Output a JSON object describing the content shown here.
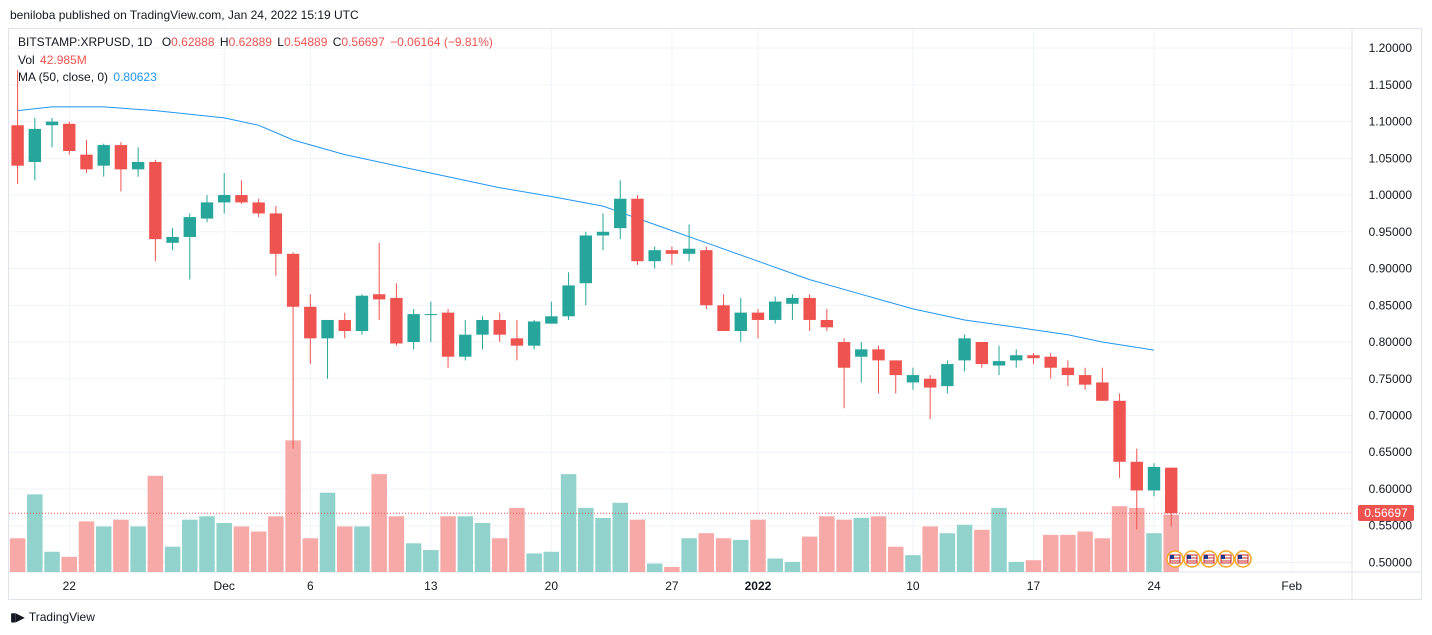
{
  "header": {
    "publish_text": "beniloba published on TradingView.com, Jan 24, 2022 15:19 UTC"
  },
  "legend": {
    "symbol": "BITSTAMP:XRPUSD, 1D",
    "o_label": "O",
    "o_value": "0.62888",
    "h_label": "H",
    "h_value": "0.62889",
    "l_label": "L",
    "l_value": "0.54889",
    "c_label": "C",
    "c_value": "0.56697",
    "change": "−0.06164 (−9.81%)",
    "vol_label": "Vol",
    "vol_value": "42.985M",
    "ma_label": "MA (50, close, 0)",
    "ma_value": "0.80623"
  },
  "last_price_label": "0.56697",
  "footer": {
    "brand": "TradingView"
  },
  "colors": {
    "up": "#26a69a",
    "down": "#ef5350",
    "up_vol": "#92d2cc",
    "down_vol": "#f7a9a7",
    "ma": "#2196f3",
    "grid": "#f0f3fa"
  },
  "chart_data": {
    "type": "candlestick",
    "symbol": "BITSTAMP:XRPUSD",
    "interval": "1D",
    "y_ticks": [
      "1.20000",
      "1.15000",
      "1.10000",
      "1.05000",
      "1.00000",
      "0.95000",
      "0.90000",
      "0.85000",
      "0.80000",
      "0.75000",
      "0.70000",
      "0.65000",
      "0.60000",
      "0.55000",
      "0.50000"
    ],
    "ylim": [
      0.487,
      1.226
    ],
    "x_ticks": [
      {
        "label": "22",
        "index": 3
      },
      {
        "label": "Dec",
        "index": 12
      },
      {
        "label": "6",
        "index": 17
      },
      {
        "label": "13",
        "index": 24
      },
      {
        "label": "20",
        "index": 31
      },
      {
        "label": "27",
        "index": 38
      },
      {
        "label": "2022",
        "index": 43,
        "bold": true
      },
      {
        "label": "10",
        "index": 52
      },
      {
        "label": "17",
        "index": 59
      },
      {
        "label": "24",
        "index": 66
      },
      {
        "label": "Feb",
        "index": 74
      }
    ],
    "x_range": [
      -0.5,
      77.5
    ],
    "candles": [
      {
        "o": 1.095,
        "h": 1.17,
        "l": 1.015,
        "c": 1.04
      },
      {
        "o": 1.045,
        "h": 1.105,
        "l": 1.02,
        "c": 1.09
      },
      {
        "o": 1.095,
        "h": 1.105,
        "l": 1.065,
        "c": 1.1
      },
      {
        "o": 1.097,
        "h": 1.1,
        "l": 1.055,
        "c": 1.06
      },
      {
        "o": 1.055,
        "h": 1.075,
        "l": 1.03,
        "c": 1.035
      },
      {
        "o": 1.04,
        "h": 1.07,
        "l": 1.025,
        "c": 1.068
      },
      {
        "o": 1.068,
        "h": 1.072,
        "l": 1.005,
        "c": 1.035
      },
      {
        "o": 1.035,
        "h": 1.065,
        "l": 1.025,
        "c": 1.045
      },
      {
        "o": 1.045,
        "h": 1.048,
        "l": 0.91,
        "c": 0.94
      },
      {
        "o": 0.935,
        "h": 0.955,
        "l": 0.925,
        "c": 0.943
      },
      {
        "o": 0.943,
        "h": 0.975,
        "l": 0.885,
        "c": 0.97
      },
      {
        "o": 0.968,
        "h": 1.0,
        "l": 0.963,
        "c": 0.99
      },
      {
        "o": 0.99,
        "h": 1.03,
        "l": 0.975,
        "c": 1.0
      },
      {
        "o": 1.0,
        "h": 1.02,
        "l": 0.988,
        "c": 0.99
      },
      {
        "o": 0.99,
        "h": 0.995,
        "l": 0.97,
        "c": 0.975
      },
      {
        "o": 0.975,
        "h": 0.985,
        "l": 0.89,
        "c": 0.92
      },
      {
        "o": 0.92,
        "h": 0.922,
        "l": 0.655,
        "c": 0.848
      },
      {
        "o": 0.848,
        "h": 0.865,
        "l": 0.77,
        "c": 0.805
      },
      {
        "o": 0.805,
        "h": 0.83,
        "l": 0.75,
        "c": 0.83
      },
      {
        "o": 0.83,
        "h": 0.84,
        "l": 0.805,
        "c": 0.815
      },
      {
        "o": 0.815,
        "h": 0.865,
        "l": 0.81,
        "c": 0.863
      },
      {
        "o": 0.865,
        "h": 0.935,
        "l": 0.83,
        "c": 0.858
      },
      {
        "o": 0.86,
        "h": 0.88,
        "l": 0.795,
        "c": 0.798
      },
      {
        "o": 0.8,
        "h": 0.845,
        "l": 0.79,
        "c": 0.838
      },
      {
        "o": 0.838,
        "h": 0.855,
        "l": 0.8,
        "c": 0.838
      },
      {
        "o": 0.84,
        "h": 0.845,
        "l": 0.765,
        "c": 0.78
      },
      {
        "o": 0.78,
        "h": 0.83,
        "l": 0.775,
        "c": 0.81
      },
      {
        "o": 0.81,
        "h": 0.835,
        "l": 0.79,
        "c": 0.83
      },
      {
        "o": 0.83,
        "h": 0.84,
        "l": 0.8,
        "c": 0.81
      },
      {
        "o": 0.805,
        "h": 0.83,
        "l": 0.775,
        "c": 0.795
      },
      {
        "o": 0.795,
        "h": 0.83,
        "l": 0.79,
        "c": 0.828
      },
      {
        "o": 0.825,
        "h": 0.855,
        "l": 0.825,
        "c": 0.835
      },
      {
        "o": 0.835,
        "h": 0.895,
        "l": 0.83,
        "c": 0.877
      },
      {
        "o": 0.88,
        "h": 0.95,
        "l": 0.85,
        "c": 0.945
      },
      {
        "o": 0.945,
        "h": 0.975,
        "l": 0.925,
        "c": 0.95
      },
      {
        "o": 0.955,
        "h": 1.02,
        "l": 0.94,
        "c": 0.995
      },
      {
        "o": 0.995,
        "h": 1.0,
        "l": 0.905,
        "c": 0.91
      },
      {
        "o": 0.91,
        "h": 0.93,
        "l": 0.9,
        "c": 0.925
      },
      {
        "o": 0.925,
        "h": 0.93,
        "l": 0.905,
        "c": 0.92
      },
      {
        "o": 0.92,
        "h": 0.96,
        "l": 0.91,
        "c": 0.927
      },
      {
        "o": 0.925,
        "h": 0.93,
        "l": 0.845,
        "c": 0.85
      },
      {
        "o": 0.85,
        "h": 0.865,
        "l": 0.815,
        "c": 0.815
      },
      {
        "o": 0.815,
        "h": 0.86,
        "l": 0.8,
        "c": 0.84
      },
      {
        "o": 0.84,
        "h": 0.845,
        "l": 0.805,
        "c": 0.83
      },
      {
        "o": 0.83,
        "h": 0.862,
        "l": 0.825,
        "c": 0.855
      },
      {
        "o": 0.852,
        "h": 0.865,
        "l": 0.83,
        "c": 0.86
      },
      {
        "o": 0.86,
        "h": 0.865,
        "l": 0.815,
        "c": 0.83
      },
      {
        "o": 0.83,
        "h": 0.845,
        "l": 0.815,
        "c": 0.82
      },
      {
        "o": 0.8,
        "h": 0.805,
        "l": 0.71,
        "c": 0.765
      },
      {
        "o": 0.78,
        "h": 0.8,
        "l": 0.745,
        "c": 0.79
      },
      {
        "o": 0.79,
        "h": 0.795,
        "l": 0.73,
        "c": 0.775
      },
      {
        "o": 0.775,
        "h": 0.775,
        "l": 0.73,
        "c": 0.755
      },
      {
        "o": 0.745,
        "h": 0.765,
        "l": 0.735,
        "c": 0.755
      },
      {
        "o": 0.75,
        "h": 0.755,
        "l": 0.695,
        "c": 0.738
      },
      {
        "o": 0.74,
        "h": 0.775,
        "l": 0.73,
        "c": 0.77
      },
      {
        "o": 0.775,
        "h": 0.81,
        "l": 0.76,
        "c": 0.805
      },
      {
        "o": 0.8,
        "h": 0.8,
        "l": 0.765,
        "c": 0.77
      },
      {
        "o": 0.768,
        "h": 0.795,
        "l": 0.755,
        "c": 0.774
      },
      {
        "o": 0.775,
        "h": 0.79,
        "l": 0.765,
        "c": 0.782
      },
      {
        "o": 0.782,
        "h": 0.785,
        "l": 0.77,
        "c": 0.778
      },
      {
        "o": 0.78,
        "h": 0.785,
        "l": 0.75,
        "c": 0.765
      },
      {
        "o": 0.765,
        "h": 0.775,
        "l": 0.74,
        "c": 0.755
      },
      {
        "o": 0.755,
        "h": 0.765,
        "l": 0.735,
        "c": 0.742
      },
      {
        "o": 0.745,
        "h": 0.765,
        "l": 0.72,
        "c": 0.72
      },
      {
        "o": 0.72,
        "h": 0.73,
        "l": 0.615,
        "c": 0.637
      },
      {
        "o": 0.637,
        "h": 0.655,
        "l": 0.545,
        "c": 0.598
      },
      {
        "o": 0.598,
        "h": 0.635,
        "l": 0.59,
        "c": 0.63
      },
      {
        "o": 0.629,
        "h": 0.629,
        "l": 0.549,
        "c": 0.567
      }
    ],
    "volumes": [
      0.2,
      0.46,
      0.12,
      0.09,
      0.3,
      0.27,
      0.31,
      0.27,
      0.57,
      0.15,
      0.31,
      0.33,
      0.29,
      0.27,
      0.24,
      0.33,
      0.78,
      0.2,
      0.47,
      0.27,
      0.27,
      0.58,
      0.33,
      0.17,
      0.13,
      0.33,
      0.33,
      0.29,
      0.2,
      0.38,
      0.11,
      0.12,
      0.58,
      0.38,
      0.32,
      0.41,
      0.31,
      0.05,
      0.03,
      0.2,
      0.23,
      0.2,
      0.19,
      0.31,
      0.08,
      0.06,
      0.21,
      0.33,
      0.31,
      0.32,
      0.33,
      0.15,
      0.1,
      0.27,
      0.23,
      0.28,
      0.25,
      0.38,
      0.06,
      0.07,
      0.22,
      0.22,
      0.24,
      0.2,
      0.39,
      0.38,
      0.23,
      0.34
    ],
    "ma": {
      "name": "MA (50, close, 0)",
      "points": [
        [
          0,
          1.115
        ],
        [
          2,
          1.12
        ],
        [
          5,
          1.12
        ],
        [
          8,
          1.115
        ],
        [
          12,
          1.105
        ],
        [
          14,
          1.095
        ],
        [
          16,
          1.075
        ],
        [
          19,
          1.055
        ],
        [
          22,
          1.04
        ],
        [
          25,
          1.025
        ],
        [
          28,
          1.01
        ],
        [
          31,
          0.998
        ],
        [
          34,
          0.985
        ],
        [
          37,
          0.96
        ],
        [
          40,
          0.935
        ],
        [
          43,
          0.91
        ],
        [
          46,
          0.885
        ],
        [
          49,
          0.865
        ],
        [
          52,
          0.845
        ],
        [
          55,
          0.83
        ],
        [
          58,
          0.82
        ],
        [
          61,
          0.81
        ],
        [
          63,
          0.8
        ],
        [
          66,
          0.789
        ]
      ]
    },
    "last_price": 0.56697,
    "grid": true
  }
}
